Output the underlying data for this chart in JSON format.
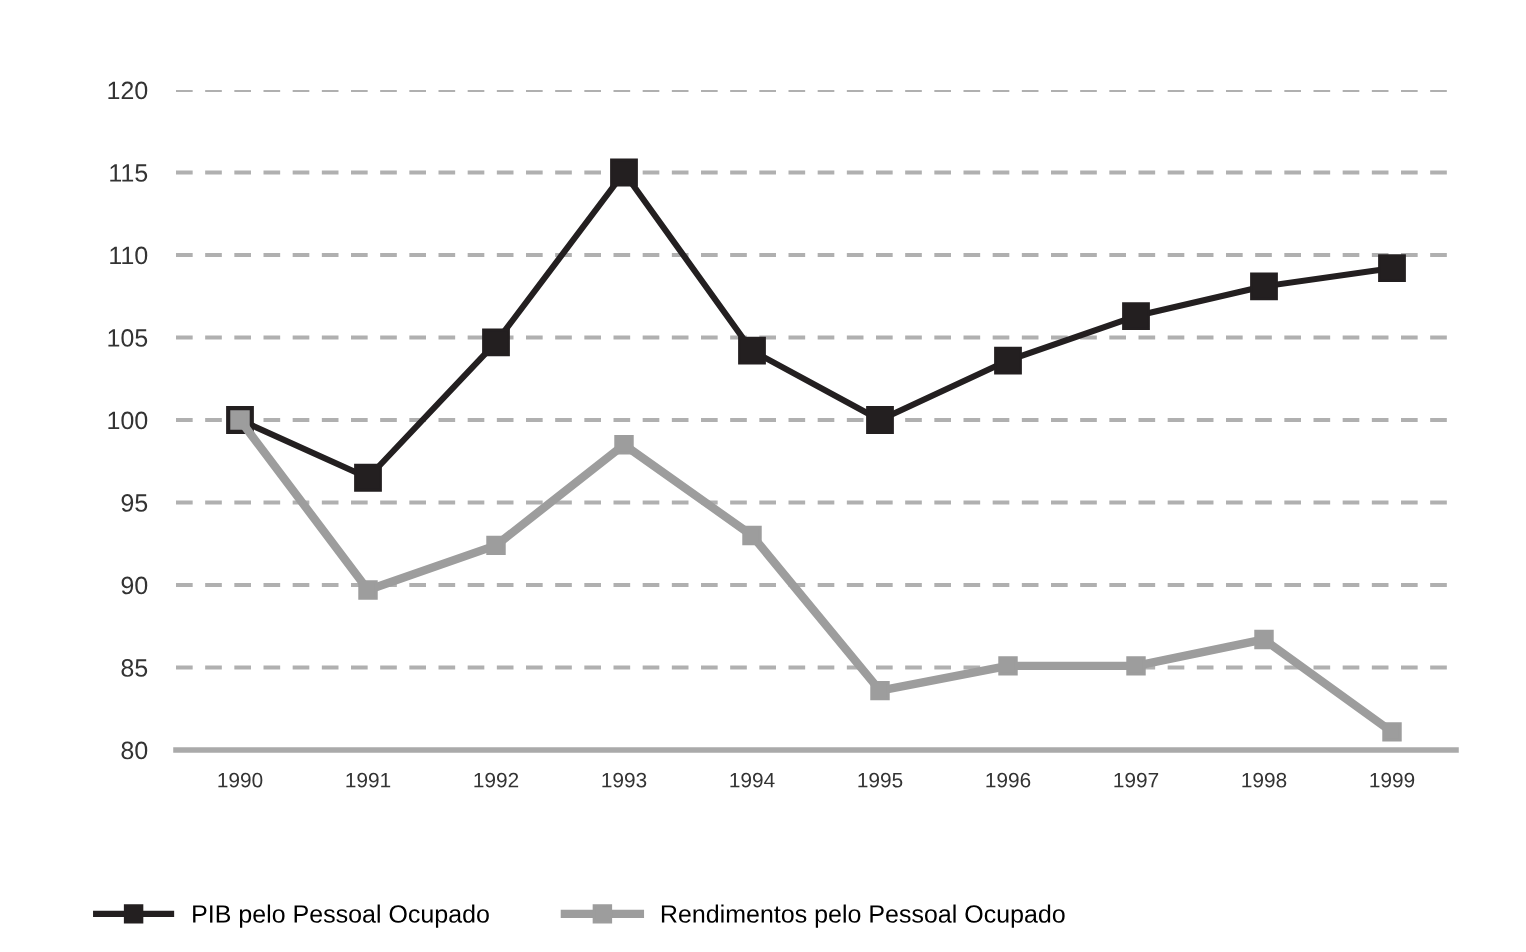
{
  "chart_data": {
    "type": "line",
    "categories": [
      "1990",
      "1991",
      "1992",
      "1993",
      "1994",
      "1995",
      "1996",
      "1997",
      "1998",
      "1999"
    ],
    "series": [
      {
        "name": "PIB pelo Pessoal Ocupado",
        "color": "#231f20",
        "values": [
          100,
          96.5,
          104.7,
          115,
          104.2,
          100,
          103.6,
          106.3,
          108.1,
          109.2
        ]
      },
      {
        "name": "Rendimentos pelo Pessoal Ocupado",
        "color": "#9d9d9d",
        "values": [
          100,
          89.7,
          92.4,
          98.5,
          93,
          83.6,
          85.1,
          85.1,
          86.7,
          81.1
        ]
      }
    ],
    "ylim": [
      80,
      120
    ],
    "yticks": [
      80,
      85,
      90,
      95,
      100,
      105,
      110,
      115,
      120
    ],
    "grid": "y",
    "legend": "bottom left",
    "marker": "square",
    "line_style": "solid"
  }
}
